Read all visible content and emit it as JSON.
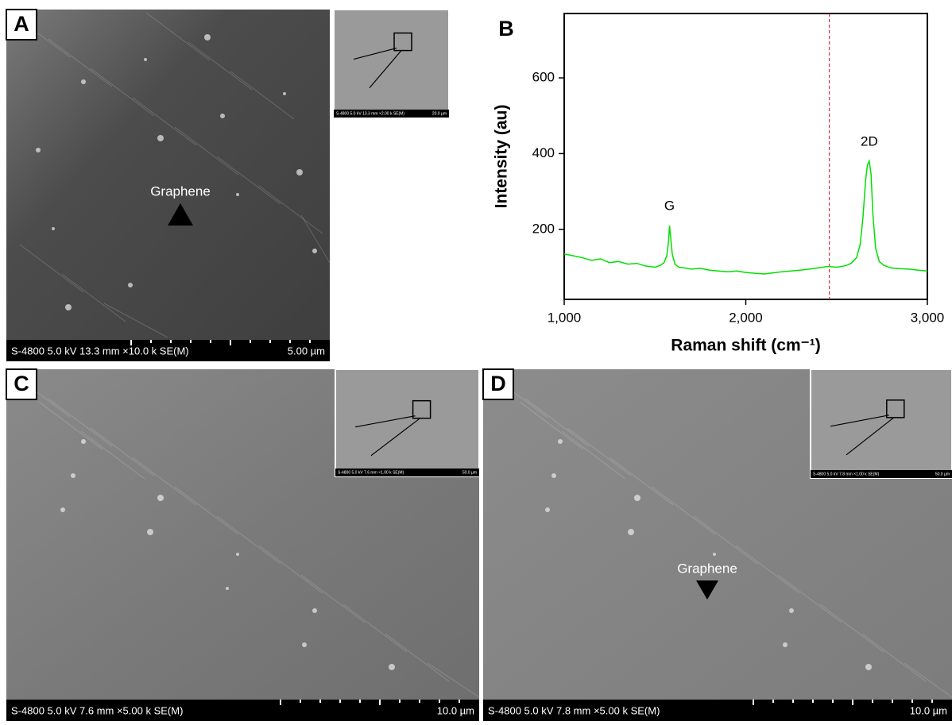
{
  "panel_a": {
    "label": "A",
    "annotation": "Graphene",
    "info": "S-4800 5.0 kV 13.3 mm ×10.0 k SE(M)",
    "scale": "5.00 µm",
    "inset_info": "S-4800 5.0 kV 13.3 mm ×2.00 k SE(M)",
    "inset_scale": "20.0 µm"
  },
  "panel_c": {
    "label": "C",
    "info": "S-4800 5.0 kV 7.6 mm ×5.00 k SE(M)",
    "scale": "10.0 µm",
    "inset_info": "S-4800 5.0 kV 7.6 mm ×1.00 k SE(M)",
    "inset_scale": "50.0 µm"
  },
  "panel_d": {
    "label": "D",
    "annotation": "Graphene",
    "info": "S-4800 5.0 kV 7.8 mm ×5.00 k SE(M)",
    "scale": "10.0 µm",
    "inset_info": "S-4800 5.0 kV 7.8 mm ×1.00 k SE(M)",
    "inset_scale": "50.0 µm"
  },
  "chart_data": {
    "type": "line",
    "label": "B",
    "xlabel": "Raman shift (cm⁻¹)",
    "ylabel": "Intensity (au)",
    "x": [
      1000,
      1050,
      1100,
      1150,
      1200,
      1250,
      1300,
      1350,
      1400,
      1450,
      1500,
      1530,
      1550,
      1565,
      1575,
      1580,
      1585,
      1595,
      1610,
      1630,
      1660,
      1700,
      1750,
      1800,
      1850,
      1900,
      1950,
      2000,
      2050,
      2100,
      2150,
      2200,
      2250,
      2300,
      2350,
      2400,
      2450,
      2500,
      2550,
      2580,
      2610,
      2630,
      2645,
      2660,
      2670,
      2680,
      2690,
      2700,
      2715,
      2735,
      2760,
      2800,
      2850,
      2900,
      2950,
      3000
    ],
    "series": [
      {
        "color": "#00e000",
        "values": [
          135,
          130,
          125,
          118,
          122,
          112,
          115,
          108,
          110,
          103,
          100,
          105,
          112,
          130,
          170,
          210,
          185,
          135,
          108,
          100,
          98,
          95,
          97,
          92,
          90,
          88,
          90,
          86,
          84,
          82,
          85,
          88,
          90,
          92,
          95,
          98,
          102,
          100,
          104,
          110,
          125,
          160,
          230,
          330,
          370,
          380,
          345,
          240,
          150,
          115,
          105,
          98,
          96,
          95,
          92,
          90
        ]
      }
    ],
    "xlim": [
      1000,
      3000
    ],
    "ylim": [
      15,
      770
    ],
    "xticks": [
      {
        "value": 1000,
        "label": "1,000"
      },
      {
        "value": 2000,
        "label": "2,000"
      },
      {
        "value": 3000,
        "label": "3,000"
      }
    ],
    "yticks": [
      200,
      400,
      600
    ],
    "vline": 2460,
    "vline_color": "#e03030",
    "annotations": [
      {
        "text": "G",
        "x": 1580
      },
      {
        "text": "2D",
        "x": 2680
      }
    ]
  }
}
